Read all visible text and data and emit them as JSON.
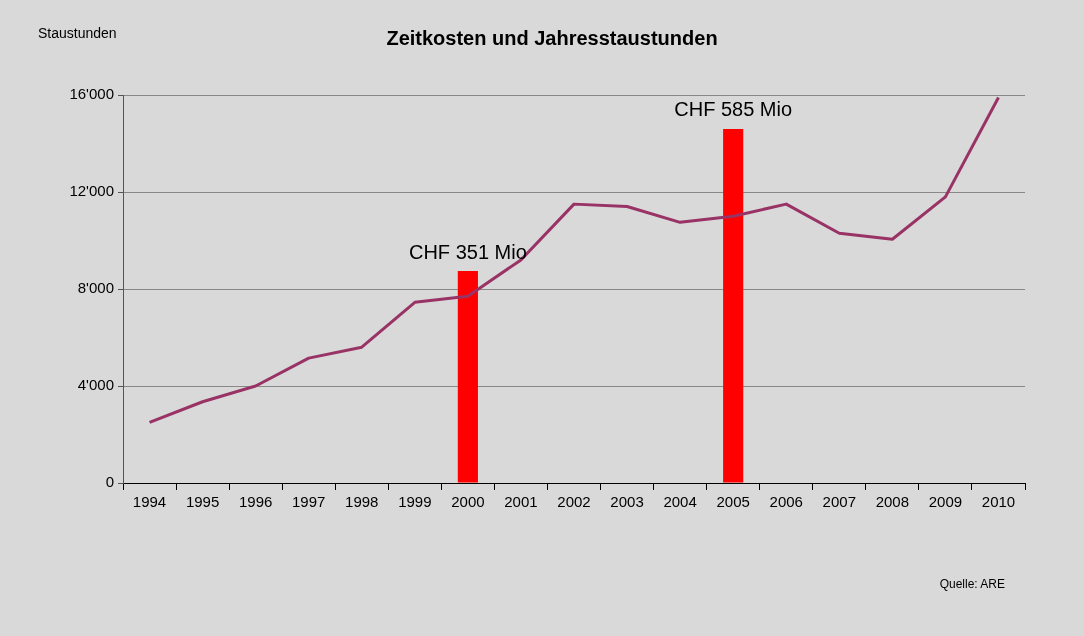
{
  "chart_data": {
    "type": "line",
    "title": "Zeitkosten und Jahresstaustunden",
    "ylabel": "Staustunden",
    "annotations": [
      "Quelle: ARE"
    ],
    "categories": [
      "1994",
      "1995",
      "1996",
      "1997",
      "1998",
      "1999",
      "2000",
      "2001",
      "2002",
      "2003",
      "2004",
      "2005",
      "2006",
      "2007",
      "2008",
      "2009",
      "2010"
    ],
    "series": [
      {
        "type": "bar",
        "color": "#ff0000",
        "values": [
          null,
          null,
          null,
          null,
          null,
          null,
          8740,
          null,
          null,
          null,
          null,
          14600,
          null,
          null,
          null,
          null,
          null
        ],
        "value_labels": [
          null,
          null,
          null,
          null,
          null,
          null,
          "CHF 351 Mio",
          null,
          null,
          null,
          null,
          "CHF 585 Mio",
          null,
          null,
          null,
          null,
          null
        ]
      },
      {
        "color": "#993366",
        "values": [
          2500,
          3350,
          4000,
          5150,
          5600,
          7450,
          7700,
          9200,
          11500,
          11400,
          10750,
          11000,
          11500,
          10300,
          10050,
          11800,
          15900
        ]
      }
    ],
    "ylim": [
      0,
      16000
    ],
    "yticks": [
      0,
      {
        "value": 4000,
        "label": "4'000"
      },
      {
        "value": 8000,
        "label": "8'000"
      },
      {
        "value": 12000,
        "label": "12'000"
      },
      {
        "value": 16000,
        "label": "16'000"
      }
    ],
    "grid": "y",
    "marker": "none",
    "line_style": "solid"
  }
}
